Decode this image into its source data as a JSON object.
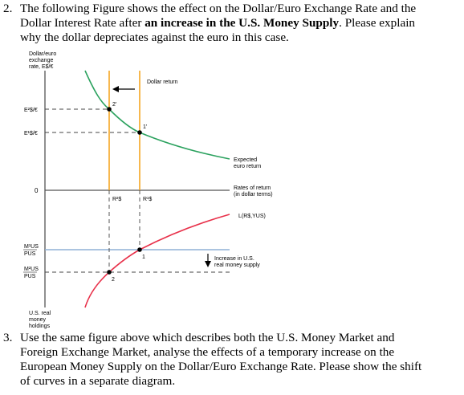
{
  "q2": {
    "number": "2.",
    "line1": "The following Figure shows the effect on the Dollar/Euro Exchange Rate and the",
    "line2_pre": "Dollar Interest Rate after ",
    "line2_bold": "an increase in the U.S. Money Supply",
    "line2_post": ". Please explain",
    "line3": "why the dollar depreciates against the euro in this case."
  },
  "figure": {
    "y_axis_label": [
      "Dollar/euro",
      "exchange",
      "rate, E$/€"
    ],
    "tick_E2": "E²$/€",
    "tick_E1": "E¹$/€",
    "tick_0": "0",
    "tick_M1": [
      "M¹US",
      "PUS"
    ],
    "tick_M2": [
      "M²US",
      "PUS"
    ],
    "bottom_axis_label": [
      "U.S. real",
      "money",
      "holdings"
    ],
    "dollar_return_label": "Dollar return",
    "expected_return_label": [
      "Expected",
      "euro return"
    ],
    "rates_of_return_label": [
      "Rates of return",
      "(in dollar terms)"
    ],
    "money_demand_label": "L(R$,YUS)",
    "increase_label": [
      "Increase in U.S.",
      "real money supply"
    ],
    "R2_label": "R²$",
    "R1_label": "R¹$",
    "point_2prime": "2'",
    "point_1prime": "1'",
    "point_1": "1",
    "point_2": "2",
    "colors": {
      "expected_return_curve": "#2ca25f",
      "money_demand_curve": "#e8314a",
      "dollar_return_line": "#f5a623",
      "money_supply_line": "#8fb0d6",
      "axis": "#555555"
    }
  },
  "q3": {
    "number": "3.",
    "line1": "Use the same figure above which describes both the U.S. Money Market and",
    "line2": "Foreign Exchange Market, analyse the effects of a temporary increase on the",
    "line3": "European Money Supply on the Dollar/Euro Exchange Rate. Please show the shift",
    "line4": "of curves in a separate diagram."
  }
}
